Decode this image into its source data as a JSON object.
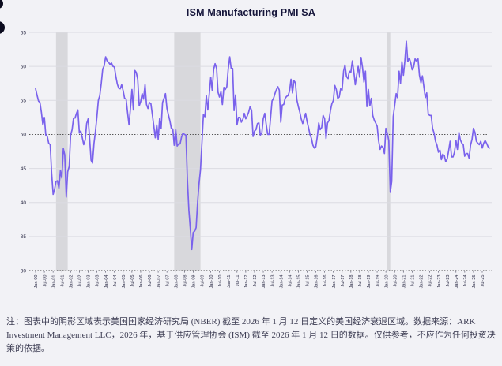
{
  "chart_data": {
    "type": "line",
    "title": "ISM Manufacturing PMI SA",
    "frequency": "monthly",
    "x_start": "2000-01",
    "x_end": "2025-12",
    "ylim": [
      30,
      65
    ],
    "y_ticks": [
      30,
      35,
      40,
      45,
      50,
      55,
      60,
      65
    ],
    "reference_line": 50,
    "grid": true,
    "legend": "none",
    "x_tick_labels": [
      "Jan-00",
      "Jul-00",
      "Jan-01",
      "Jul-01",
      "Jan-02",
      "Jul-02",
      "Jan-03",
      "Jul-03",
      "Jan-04",
      "Jul-04",
      "Jan-05",
      "Jul-05",
      "Jan-06",
      "Jul-06",
      "Jan-07",
      "Jul-07",
      "Jan-08",
      "Jul-08",
      "Jan-09",
      "Jul-09",
      "Jan-10",
      "Jul-10",
      "Jan-11",
      "Jul-11",
      "Jan-12",
      "Jul-12",
      "Jan-13",
      "Jul-13",
      "Jan-14",
      "Jul-14",
      "Jan-15",
      "Jul-15",
      "Jan-16",
      "Jul-16",
      "Jan-17",
      "Jul-17",
      "Jan-18",
      "Jul-18",
      "Jan-19",
      "Jul-19",
      "Jan-20",
      "Jul-20",
      "Jan-21",
      "Jul-21",
      "Jan-22",
      "Jul-22",
      "Jan-23",
      "Jul-23",
      "Jan-24",
      "Jul-24",
      "Jan-25",
      "Jul-25"
    ],
    "recession_bands": [
      {
        "start": "2001-03",
        "end": "2001-11"
      },
      {
        "start": "2007-12",
        "end": "2009-06"
      },
      {
        "start": "2020-02",
        "end": "2020-04"
      }
    ],
    "series": [
      {
        "name": "ISM Manufacturing PMI SA",
        "values": [
          56.7,
          55.8,
          54.9,
          54.7,
          53.2,
          51.4,
          52.5,
          49.9,
          49.7,
          48.7,
          48.5,
          44.3,
          41.2,
          41.9,
          43.1,
          43.2,
          42.1,
          44.7,
          43.6,
          47.9,
          47.0,
          40.8,
          44.5,
          45.3,
          49.9,
          50.7,
          52.4,
          52.4,
          53.1,
          53.6,
          50.2,
          50.5,
          49.5,
          48.5,
          49.2,
          51.6,
          52.3,
          49.5,
          46.2,
          45.8,
          48.7,
          50.4,
          52.5,
          55.0,
          55.7,
          57.5,
          59.6,
          60.1,
          61.4,
          60.8,
          60.6,
          60.3,
          60.5,
          60.0,
          59.9,
          58.5,
          57.4,
          56.8,
          56.7,
          57.3,
          56.4,
          55.3,
          55.2,
          53.3,
          51.4,
          53.8,
          56.6,
          53.6,
          59.4,
          59.1,
          58.1,
          54.2,
          54.8,
          56.0,
          55.2,
          57.3,
          54.4,
          53.8,
          54.7,
          54.5,
          52.9,
          51.2,
          49.5,
          51.4,
          49.3,
          52.3,
          50.9,
          54.7,
          55.3,
          56.0,
          53.8,
          52.9,
          52.0,
          50.9,
          50.8,
          48.4,
          50.7,
          48.3,
          48.6,
          48.6,
          49.6,
          50.2,
          50.0,
          49.9,
          43.5,
          38.9,
          36.2,
          33.1,
          35.6,
          35.8,
          36.3,
          40.1,
          42.8,
          44.8,
          48.9,
          52.9,
          52.6,
          55.7,
          53.6,
          55.9,
          58.4,
          56.5,
          59.6,
          60.4,
          59.7,
          56.2,
          55.5,
          56.3,
          54.4,
          56.9,
          56.6,
          57.0,
          59.6,
          61.4,
          59.7,
          59.7,
          53.5,
          55.8,
          51.4,
          52.5,
          52.5,
          51.8,
          52.2,
          53.1,
          52.3,
          52.7,
          53.3,
          54.1,
          53.5,
          49.7,
          50.5,
          50.7,
          51.6,
          51.7,
          49.9,
          50.2,
          52.3,
          53.1,
          51.5,
          50.0,
          50.0,
          52.5,
          54.9,
          55.3,
          56.0,
          56.6,
          57.0,
          56.5,
          51.8,
          54.3,
          54.4,
          55.3,
          55.6,
          55.7,
          56.4,
          58.1,
          56.1,
          57.9,
          57.6,
          55.1,
          54.1,
          53.3,
          52.3,
          51.6,
          52.3,
          53.1,
          51.9,
          51.0,
          50.0,
          49.4,
          48.4,
          48.0,
          48.2,
          49.7,
          51.7,
          50.7,
          51.0,
          52.8,
          52.3,
          49.4,
          51.7,
          52.0,
          53.5,
          54.5,
          55.0,
          57.2,
          56.6,
          55.3,
          55.5,
          56.7,
          56.5,
          59.3,
          60.2,
          58.5,
          58.2,
          59.3,
          59.1,
          60.8,
          59.3,
          57.3,
          58.7,
          60.0,
          58.4,
          61.3,
          59.8,
          57.7,
          59.3,
          54.1,
          56.6,
          54.2,
          55.3,
          52.8,
          52.1,
          51.7,
          51.2,
          49.1,
          47.8,
          48.3,
          48.1,
          47.2,
          50.9,
          50.1,
          49.1,
          41.5,
          43.1,
          52.6,
          54.2,
          56.0,
          55.4,
          59.3,
          57.5,
          60.7,
          58.7,
          60.8,
          63.7,
          60.7,
          61.2,
          60.6,
          59.5,
          59.9,
          61.1,
          60.8,
          61.1,
          58.7,
          57.6,
          58.6,
          57.1,
          55.4,
          56.1,
          53.0,
          52.8,
          52.8,
          50.9,
          50.2,
          49.0,
          48.4,
          47.4,
          47.7,
          46.3,
          47.1,
          46.9,
          46.0,
          46.4,
          47.6,
          49.0,
          46.7,
          46.7,
          47.4,
          49.1,
          47.8,
          50.3,
          49.2,
          48.7,
          48.5,
          46.8,
          47.2,
          47.2,
          46.5,
          48.4,
          49.3,
          50.9,
          50.3,
          49.0,
          48.7,
          48.5,
          49.0,
          48.0,
          48.7,
          49.1,
          48.7,
          48.2,
          48.0
        ]
      }
    ],
    "line_color": "#7a62ec",
    "recession_band_color": "#d8d8dc",
    "grid_color": "#dbdbe2",
    "reference_line_color": "#3c3c3c",
    "tick_text_color": "#2e2e48",
    "background": "#f2f2f6"
  },
  "footnote": {
    "text": "注：图表中的阴影区域表示美国国家经济研究局 (NBER) 截至 2026 年 1 月 12 日定义的美国经济衰退区域。数据来源：ARK Investment Management LLC，2026 年，基于供应管理协会 (ISM) 截至 2026 年 1 月 12 日的数据。仅供参考，不应作为任何投资决策的依据。"
  }
}
